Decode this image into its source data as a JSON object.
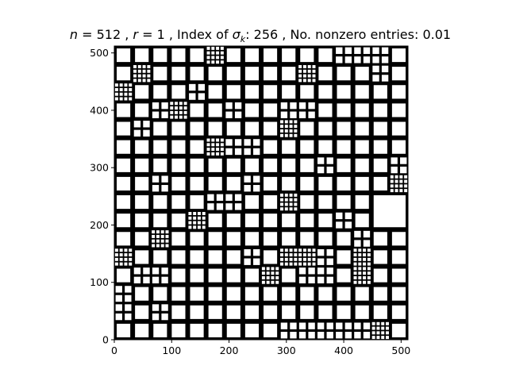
{
  "chart_data": {
    "type": "heatmap",
    "title_parts": {
      "n_var": "n",
      "n_eq": " = 512 , ",
      "r_var": "r",
      "r_eq": " = 1 , Index of ",
      "sigma": "σ",
      "sigma_sub": "k",
      "rest": ": 256 , No. nonzero entries: 0.01"
    },
    "xlim": [
      0,
      512
    ],
    "ylim": [
      0,
      512
    ],
    "x_ticks": [
      0,
      100,
      200,
      300,
      400,
      500
    ],
    "y_ticks": [
      0,
      100,
      200,
      300,
      400,
      500
    ],
    "x_tick_labels": [
      "0",
      "100",
      "200",
      "300",
      "400",
      "500"
    ],
    "y_tick_labels": [
      "0",
      "100",
      "200",
      "300",
      "400",
      "500"
    ],
    "colormap": {
      "nonzero": "#000000",
      "zero": "#ffffff"
    },
    "grid": false,
    "matrix_description": "hierarchical block sparsity pattern: 16x16 grid of 32-unit blocks, white block interiors with black borders, some blocks subdivided into 2x2 or 4x4 sub-blocks, one 64-unit merged block near x=448-512, y=192-256",
    "uniform_block_size": 32,
    "merged_blocks": [
      {
        "x": [
          448,
          512
        ],
        "y": [
          192,
          256
        ]
      }
    ],
    "subdivided_blocks_2x2": [
      [
        160,
        480
      ],
      [
        384,
        480
      ],
      [
        416,
        480
      ],
      [
        448,
        480
      ],
      [
        448,
        448
      ],
      [
        0,
        416
      ],
      [
        128,
        416
      ],
      [
        64,
        384
      ],
      [
        320,
        384
      ],
      [
        288,
        384
      ],
      [
        192,
        384
      ],
      [
        96,
        384
      ],
      [
        32,
        352
      ],
      [
        192,
        320
      ],
      [
        224,
        320
      ],
      [
        352,
        288
      ],
      [
        480,
        288
      ],
      [
        64,
        256
      ],
      [
        224,
        256
      ],
      [
        160,
        224
      ],
      [
        192,
        224
      ],
      [
        384,
        192
      ],
      [
        416,
        160
      ],
      [
        224,
        128
      ],
      [
        320,
        128
      ],
      [
        352,
        128
      ],
      [
        32,
        96
      ],
      [
        64,
        96
      ],
      [
        320,
        96
      ],
      [
        352,
        96
      ],
      [
        0,
        64
      ],
      [
        0,
        32
      ],
      [
        64,
        32
      ],
      [
        288,
        0
      ],
      [
        320,
        0
      ],
      [
        352,
        0
      ],
      [
        384,
        0
      ],
      [
        416,
        0
      ],
      [
        448,
        0
      ]
    ],
    "subdivided_blocks_4x4": [
      [
        160,
        480
      ],
      [
        32,
        448
      ],
      [
        320,
        448
      ],
      [
        0,
        416
      ],
      [
        96,
        384
      ],
      [
        288,
        352
      ],
      [
        160,
        320
      ],
      [
        480,
        256
      ],
      [
        288,
        224
      ],
      [
        128,
        192
      ],
      [
        64,
        160
      ],
      [
        0,
        128
      ],
      [
        288,
        128
      ],
      [
        320,
        128
      ],
      [
        416,
        128
      ],
      [
        256,
        96
      ],
      [
        416,
        96
      ],
      [
        448,
        0
      ]
    ]
  }
}
